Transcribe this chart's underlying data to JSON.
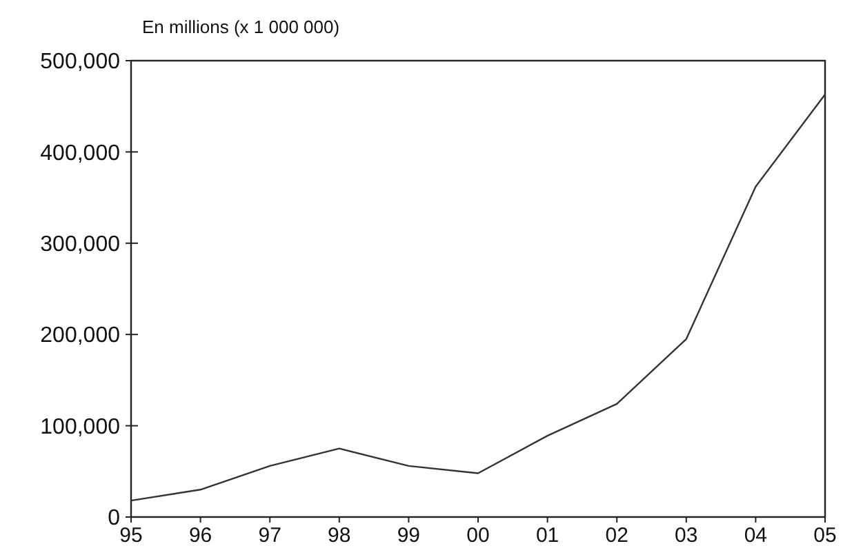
{
  "chart_data": {
    "type": "line",
    "ylabel": "En millions (x 1 000 000)",
    "categories": [
      "95",
      "96",
      "97",
      "98",
      "99",
      "00",
      "01",
      "02",
      "03",
      "04",
      "05"
    ],
    "series": [
      {
        "color": "#333333",
        "values": [
          18000,
          30000,
          56000,
          75000,
          56000,
          48000,
          89000,
          124000,
          195000,
          362000,
          463000
        ]
      }
    ],
    "ylim": [
      0,
      500000
    ],
    "yticks": [
      {
        "value": 0,
        "label": "0"
      },
      {
        "value": 100000,
        "label": "100,000"
      },
      {
        "value": 200000,
        "label": "200,000"
      },
      {
        "value": 300000,
        "label": "300,000"
      },
      {
        "value": 400000,
        "label": "400,000"
      },
      {
        "value": 500000,
        "label": "500,000"
      }
    ],
    "grid": false,
    "marker": "none",
    "line_style": "solid"
  }
}
